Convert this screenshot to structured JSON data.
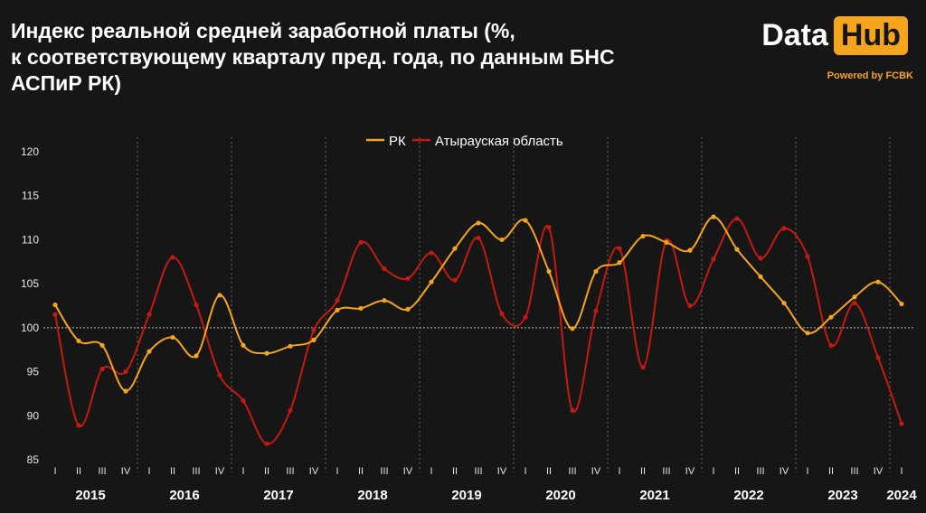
{
  "header": {
    "title_lines": [
      "Индекс реальной средней заработной платы (%,",
      "к соответствующему кварталу пред. года, по данным БНС",
      "АСПиР РК)"
    ]
  },
  "brand": {
    "data_text": "Data",
    "hub_text": "Hub",
    "powered_text": "Powered by FCBK"
  },
  "colors": {
    "background": "#161616",
    "rk": "#f5a51d",
    "atyrau": "#c41a10",
    "accent": "#f5a51d"
  },
  "chart_data": {
    "type": "line",
    "ylim": [
      85,
      120
    ],
    "yticks": [
      85,
      90,
      95,
      100,
      105,
      110,
      115,
      120
    ],
    "reference_line": 100,
    "grid": "vertical dashed year separators",
    "legend_position": "top-center",
    "years": [
      "2015",
      "2016",
      "2017",
      "2018",
      "2019",
      "2020",
      "2021",
      "2022",
      "2023",
      "2024"
    ],
    "quarter_labels": [
      "I",
      "II",
      "III",
      "IV"
    ],
    "categories": [
      "2015 I",
      "2015 II",
      "2015 III",
      "2015 IV",
      "2016 I",
      "2016 II",
      "2016 III",
      "2016 IV",
      "2017 I",
      "2017 II",
      "2017 III",
      "2017 IV",
      "2018 I",
      "2018 II",
      "2018 III",
      "2018 IV",
      "2019 I",
      "2019 II",
      "2019 III",
      "2019 IV",
      "2020 I",
      "2020 II",
      "2020 III",
      "2020 IV",
      "2021 I",
      "2021 II",
      "2021 III",
      "2021 IV",
      "2022 I",
      "2022 II",
      "2022 III",
      "2022 IV",
      "2023 I",
      "2023 II",
      "2023 III",
      "2023 IV",
      "2024 I"
    ],
    "series": [
      {
        "name": "РК",
        "color": "#f5a51d",
        "values": [
          102.6,
          98.5,
          98.0,
          92.8,
          97.3,
          98.9,
          96.8,
          103.7,
          98.0,
          97.1,
          97.9,
          98.6,
          102.0,
          102.2,
          103.1,
          102.1,
          105.2,
          109.0,
          111.9,
          110.0,
          112.2,
          106.4,
          99.9,
          106.4,
          107.4,
          110.4,
          109.7,
          108.8,
          112.6,
          108.9,
          105.8,
          102.8,
          99.4,
          101.2,
          103.5,
          105.2,
          102.7
        ]
      },
      {
        "name": "Атырауская область",
        "color": "#c41a10",
        "values": [
          101.5,
          88.9,
          95.3,
          95.0,
          101.5,
          108.0,
          102.6,
          94.6,
          91.7,
          86.8,
          90.6,
          99.7,
          103.1,
          109.7,
          106.7,
          105.6,
          108.5,
          105.4,
          110.2,
          101.6,
          101.2,
          111.4,
          90.6,
          101.9,
          109.0,
          95.5,
          109.9,
          102.5,
          107.8,
          112.4,
          107.9,
          111.3,
          108.1,
          98.0,
          102.8,
          96.6,
          89.1
        ]
      }
    ]
  }
}
